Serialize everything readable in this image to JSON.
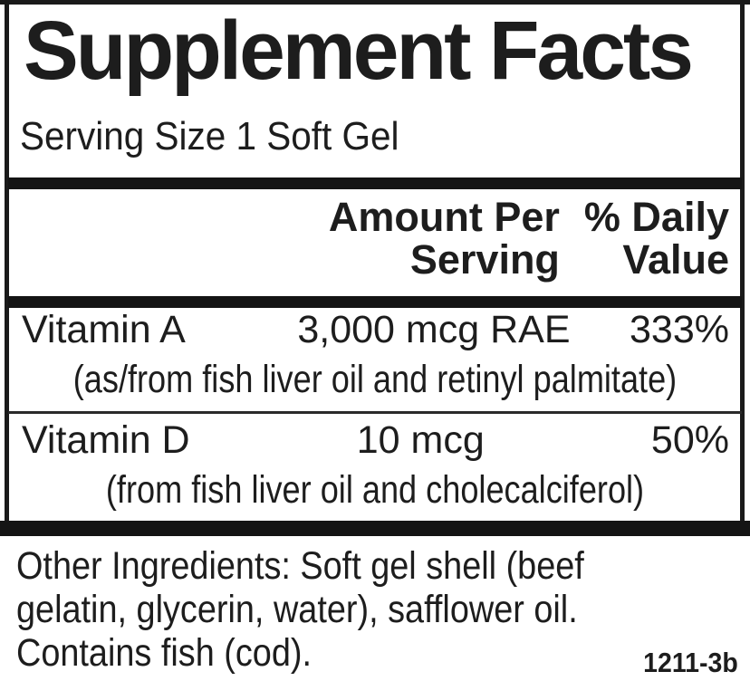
{
  "label": {
    "title": "Supplement Facts",
    "serving_size": "Serving Size 1 Soft Gel",
    "columns": {
      "amount_line1": "Amount Per",
      "amount_line2": "Serving",
      "daily_value_line1": "% Daily",
      "daily_value_line2": "Value"
    },
    "nutrients": [
      {
        "name": "Vitamin A",
        "amount": "3,000 mcg RAE",
        "daily_value": "333%",
        "source": "(as/from fish liver oil and retinyl palmitate)"
      },
      {
        "name": "Vitamin D",
        "amount": "10 mcg",
        "daily_value": "50%",
        "source": "(from fish liver oil and cholecalciferol)"
      }
    ],
    "other_ingredients": {
      "lines": [
        "Other Ingredients: Soft gel shell (beef",
        "gelatin, glycerin, water), safflower oil.",
        "Contains fish (cod)."
      ]
    },
    "item_code": "1211-3b",
    "colors": {
      "ink": "#1d1d1d",
      "bar": "#141414",
      "background": "#ffffff"
    }
  }
}
